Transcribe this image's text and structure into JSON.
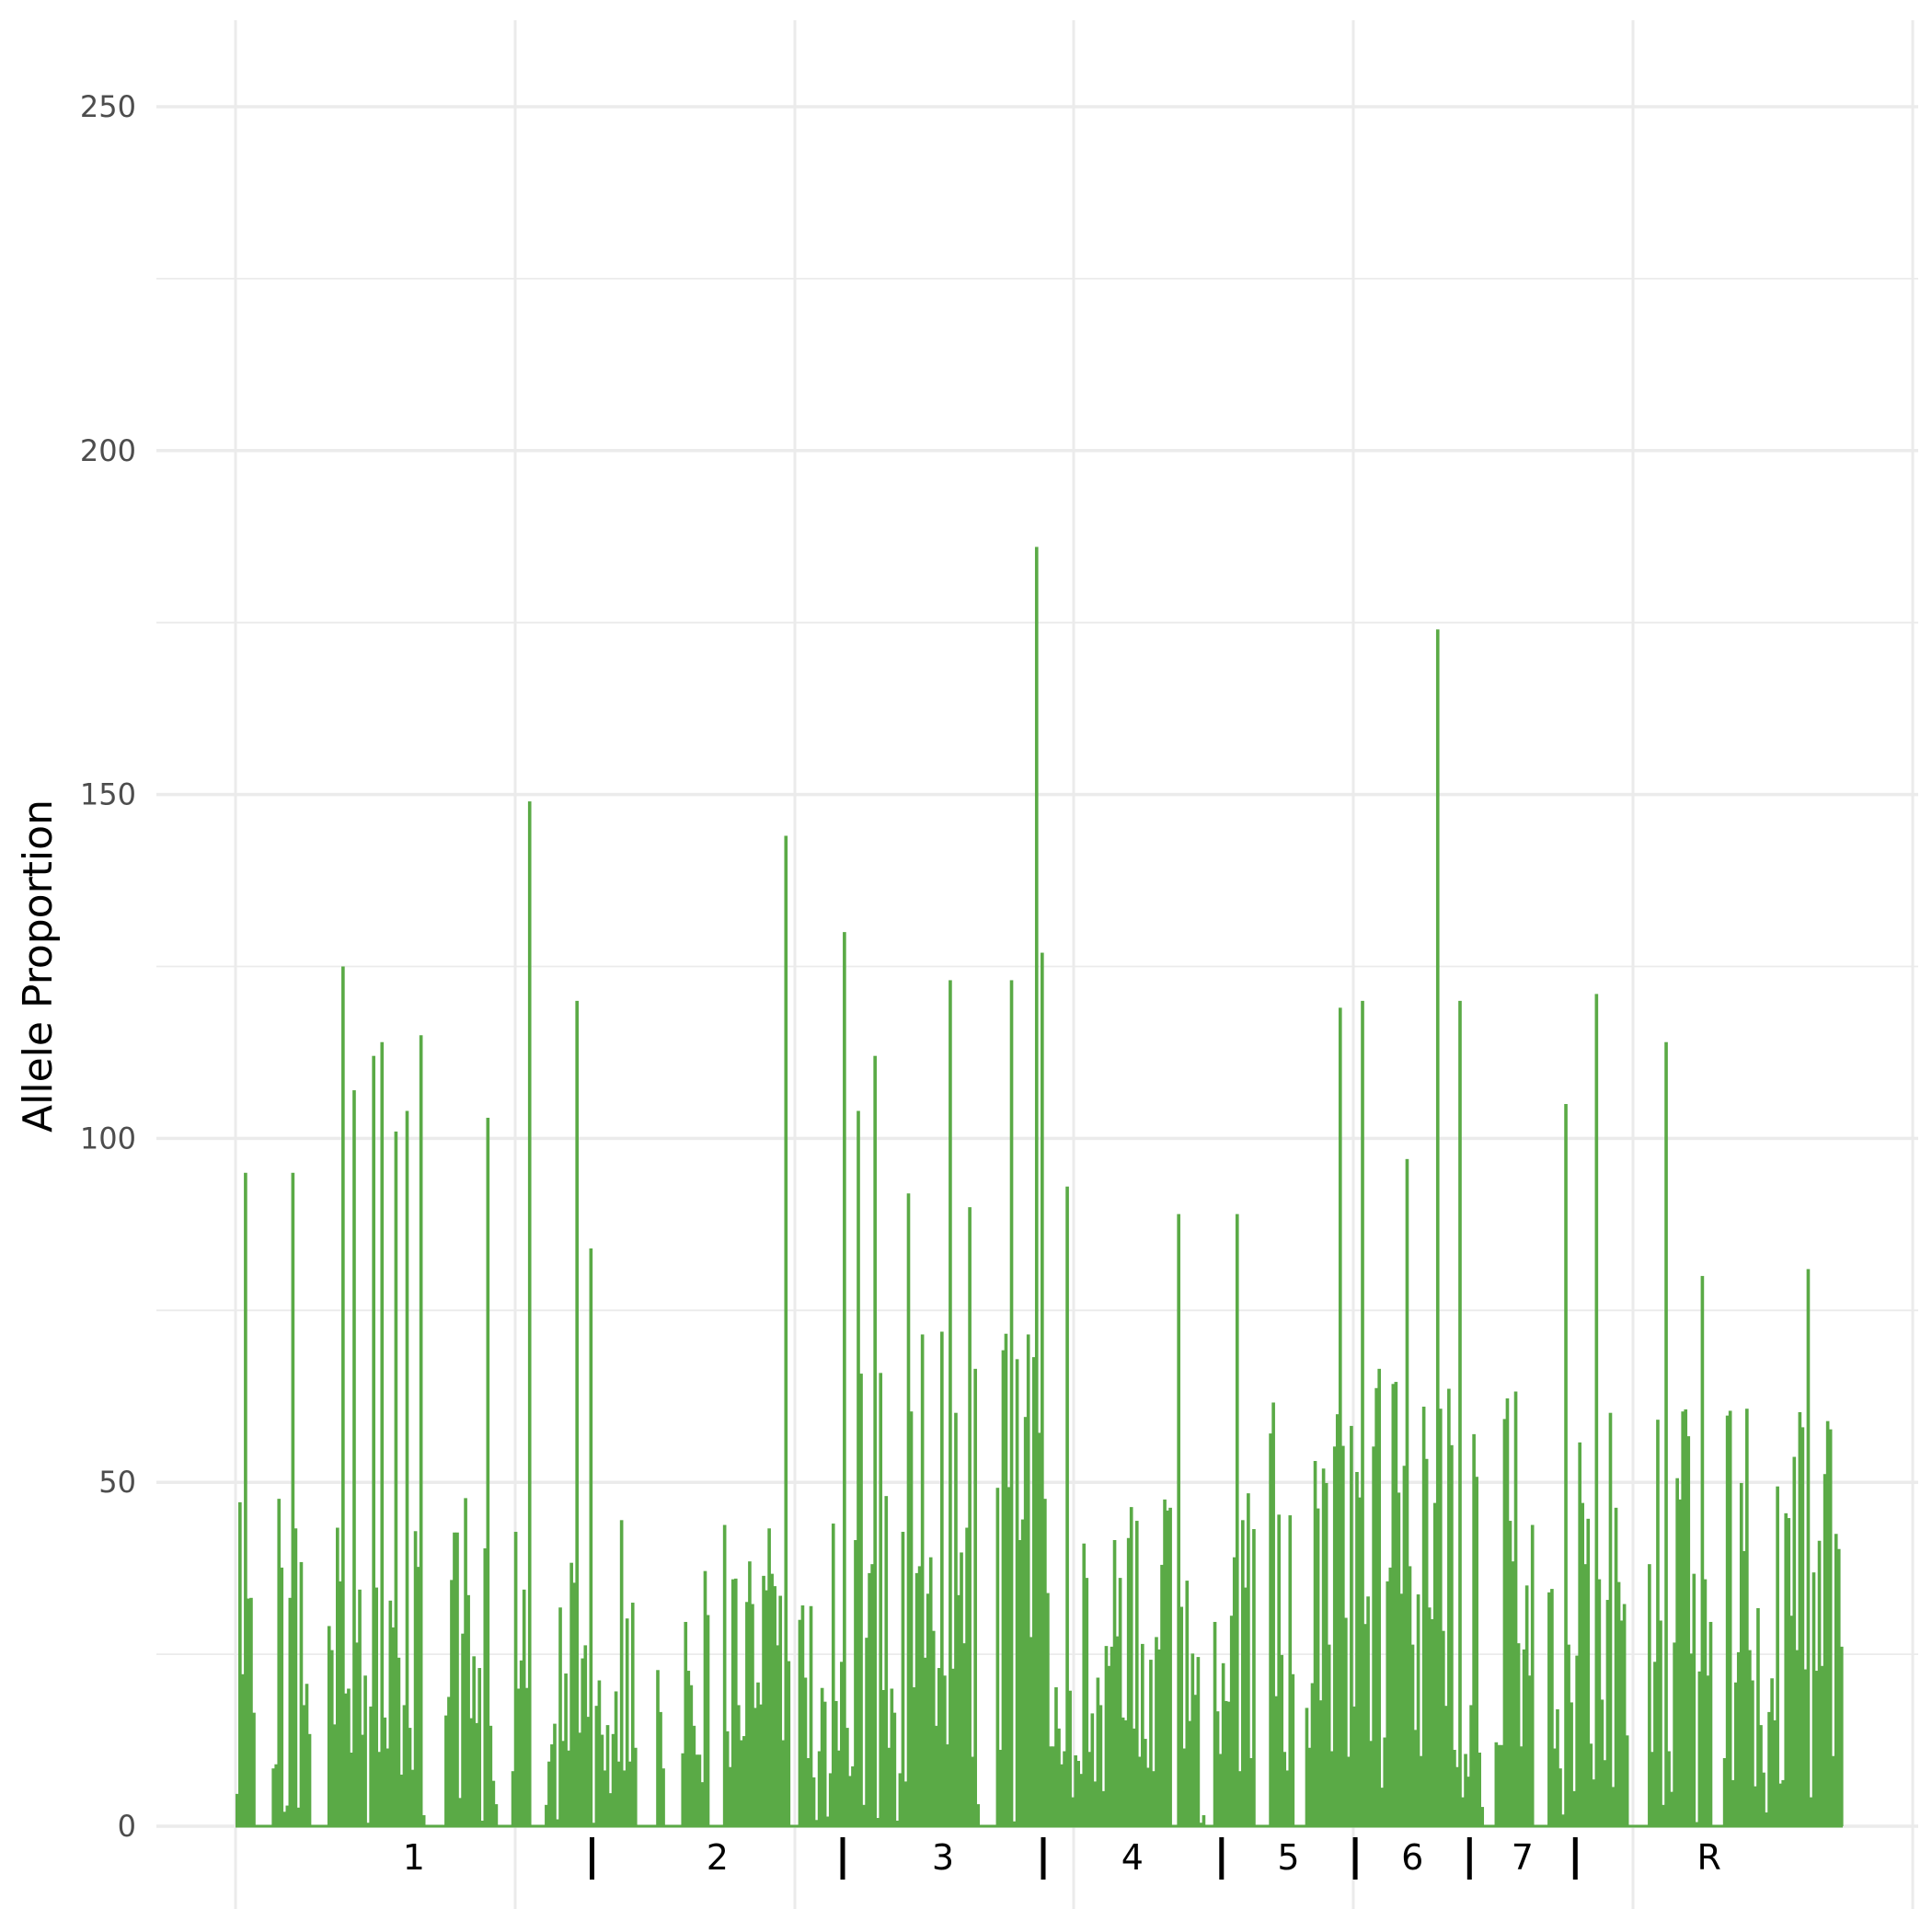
{
  "chart_data": {
    "type": "bar",
    "title": "",
    "xlabel": "",
    "ylabel": "Allele Proportion",
    "ylim": [
      0,
      260
    ],
    "y_ticks": [
      0,
      50,
      100,
      150,
      200,
      250
    ],
    "grid": true,
    "bar_color": "#5aaa46",
    "n_bars": 577,
    "x_segments": [
      {
        "label": "1",
        "start": 0,
        "end": 128
      },
      {
        "label": "2",
        "start": 128,
        "end": 218
      },
      {
        "label": "3",
        "start": 218,
        "end": 290
      },
      {
        "label": "4",
        "start": 290,
        "end": 354
      },
      {
        "label": "5",
        "start": 354,
        "end": 402
      },
      {
        "label": "6",
        "start": 402,
        "end": 443
      },
      {
        "label": "7",
        "start": 443,
        "end": 481
      },
      {
        "label": "R",
        "start": 481,
        "end": 577
      }
    ],
    "peaks": [
      {
        "index": 3,
        "value": 95
      },
      {
        "index": 20,
        "value": 95
      },
      {
        "index": 38,
        "value": 125
      },
      {
        "index": 42,
        "value": 107
      },
      {
        "index": 49,
        "value": 112
      },
      {
        "index": 52,
        "value": 114
      },
      {
        "index": 57,
        "value": 101
      },
      {
        "index": 61,
        "value": 104
      },
      {
        "index": 66,
        "value": 115
      },
      {
        "index": 90,
        "value": 103
      },
      {
        "index": 105,
        "value": 149
      },
      {
        "index": 122,
        "value": 120
      },
      {
        "index": 127,
        "value": 84
      },
      {
        "index": 197,
        "value": 144
      },
      {
        "index": 218,
        "value": 130
      },
      {
        "index": 223,
        "value": 104
      },
      {
        "index": 229,
        "value": 112
      },
      {
        "index": 241,
        "value": 92
      },
      {
        "index": 256,
        "value": 123
      },
      {
        "index": 263,
        "value": 90
      },
      {
        "index": 278,
        "value": 123
      },
      {
        "index": 287,
        "value": 186
      },
      {
        "index": 289,
        "value": 127
      },
      {
        "index": 298,
        "value": 93
      },
      {
        "index": 338,
        "value": 89
      },
      {
        "index": 359,
        "value": 89
      },
      {
        "index": 396,
        "value": 119
      },
      {
        "index": 404,
        "value": 120
      },
      {
        "index": 420,
        "value": 97
      },
      {
        "index": 431,
        "value": 174
      },
      {
        "index": 439,
        "value": 120
      },
      {
        "index": 477,
        "value": 105
      },
      {
        "index": 488,
        "value": 121
      },
      {
        "index": 513,
        "value": 114
      },
      {
        "index": 526,
        "value": 80
      },
      {
        "index": 564,
        "value": 81
      }
    ],
    "zero_ranges": [
      [
        7,
        12
      ],
      [
        27,
        32
      ],
      [
        68,
        74
      ],
      [
        94,
        98
      ],
      [
        106,
        110
      ],
      [
        144,
        150
      ],
      [
        154,
        159
      ],
      [
        170,
        174
      ],
      [
        199,
        201
      ],
      [
        268,
        272
      ],
      [
        336,
        338
      ],
      [
        348,
        350
      ],
      [
        366,
        370
      ],
      [
        380,
        383
      ],
      [
        448,
        451
      ],
      [
        466,
        470
      ],
      [
        500,
        506
      ],
      [
        530,
        533
      ]
    ]
  }
}
